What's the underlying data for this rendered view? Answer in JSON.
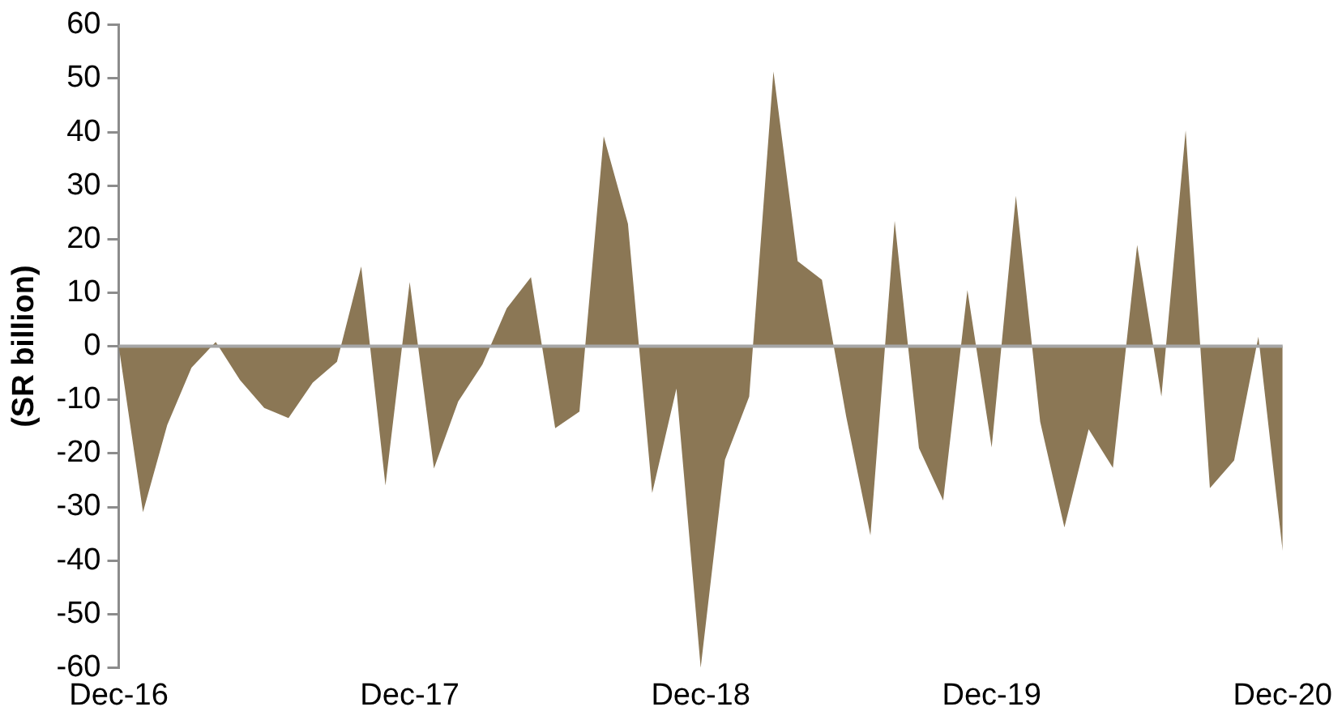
{
  "chart_data": {
    "type": "area",
    "ylabel": "(SR billion)",
    "categories": [
      "Dec-16",
      null,
      null,
      null,
      null,
      null,
      null,
      null,
      null,
      null,
      null,
      null,
      "Dec-17",
      null,
      null,
      null,
      null,
      null,
      null,
      null,
      null,
      null,
      null,
      null,
      "Dec-18",
      null,
      null,
      null,
      null,
      null,
      null,
      null,
      null,
      null,
      null,
      null,
      "Dec-19",
      null,
      null,
      null,
      null,
      null,
      null,
      null,
      null,
      null,
      null,
      null,
      "Dec-20"
    ],
    "series": [
      {
        "color": "#8b7755",
        "values": [
          0,
          -31,
          -14.7,
          -4,
          0.8,
          -6.3,
          -11.5,
          -13.4,
          -6.8,
          -2.9,
          14.9,
          -26,
          12,
          -22.8,
          -10.3,
          -3.4,
          7.1,
          12.9,
          -15.3,
          -12.2,
          39.2,
          22.9,
          -27.4,
          -7.9,
          -60,
          -21.2,
          -9.4,
          51.3,
          15.9,
          12.4,
          -13.1,
          -35.3,
          23.4,
          -19,
          -28.8,
          10.5,
          -18.9,
          28.1,
          -14.1,
          -33.8,
          -15.5,
          -22.7,
          18.9,
          -9.4,
          40.3,
          -26.5,
          -21.3,
          1.8,
          -38.2
        ]
      }
    ],
    "ylim": [
      -60,
      60
    ],
    "yticks": [
      -60,
      -50,
      -40,
      -30,
      -20,
      -10,
      0,
      10,
      20,
      30,
      40,
      50,
      60
    ],
    "ref_lines": [
      {
        "axis": "y",
        "value": 0,
        "color": "#a6a6a6"
      }
    ],
    "grid": false,
    "legend": false
  }
}
